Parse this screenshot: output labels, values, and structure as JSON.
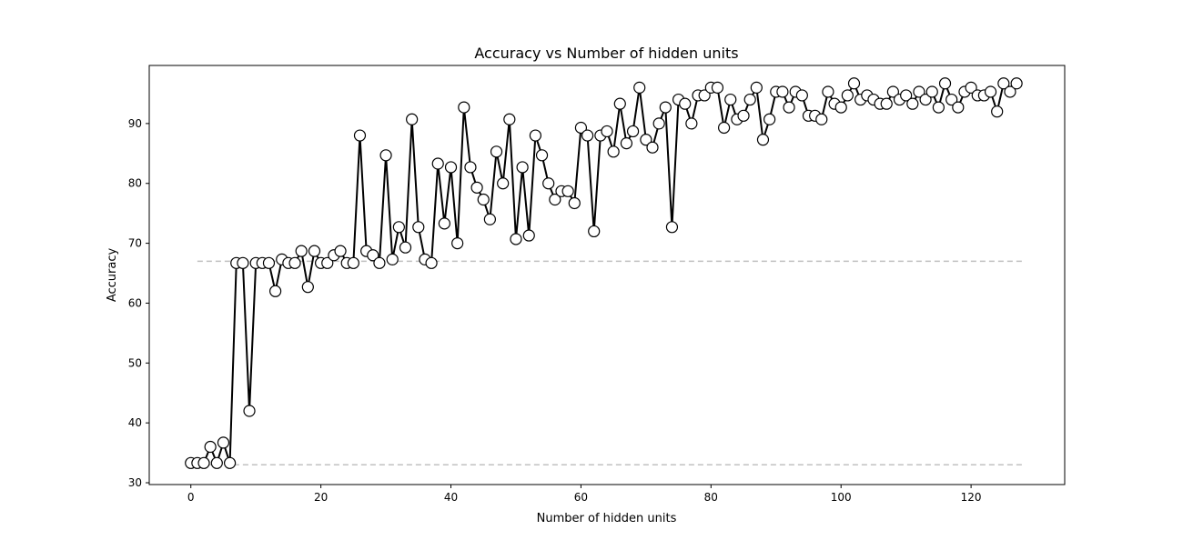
{
  "chart_data": {
    "type": "line",
    "title": "Accuracy vs Number of hidden units",
    "xlabel": "Number of hidden units",
    "ylabel": "Accuracy",
    "xlim": [
      -6.4,
      134.4
    ],
    "ylim": [
      29.7,
      99.7
    ],
    "x_ticks": [
      0,
      20,
      40,
      60,
      80,
      100,
      120
    ],
    "y_ticks": [
      30,
      40,
      50,
      60,
      70,
      80,
      90
    ],
    "grid": false,
    "legend": "none",
    "line_color": "#000000",
    "marker_face": "#ffffff",
    "reference_line_color": "#c0c0c0",
    "reference_lines": [
      {
        "y": 67.0,
        "x_range": [
          1,
          128
        ]
      },
      {
        "y": 33.0,
        "x_range": [
          1,
          128
        ]
      }
    ],
    "series": [
      {
        "x": [
          0,
          1,
          2,
          3,
          4,
          5,
          6,
          7,
          8,
          9,
          10,
          11,
          12,
          13,
          14,
          15,
          16,
          17,
          18,
          19,
          20,
          21,
          22,
          23,
          24,
          25,
          26,
          27,
          28,
          29,
          30,
          31,
          32,
          33,
          34,
          35,
          36,
          37,
          38,
          39,
          40,
          41,
          42,
          43,
          44,
          45,
          46,
          47,
          48,
          49,
          50,
          51,
          52,
          53,
          54,
          55,
          56,
          57,
          58,
          59,
          60,
          61,
          62,
          63,
          64,
          65,
          66,
          67,
          68,
          69,
          70,
          71,
          72,
          73,
          74,
          75,
          76,
          77,
          78,
          79,
          80,
          81,
          82,
          83,
          84,
          85,
          86,
          87,
          88,
          89,
          90,
          91,
          92,
          93,
          94,
          95,
          96,
          97,
          98,
          99,
          100,
          101,
          102,
          103,
          104,
          105,
          106,
          107,
          108,
          109,
          110,
          111,
          112,
          113,
          114,
          115,
          116,
          117,
          118,
          119,
          120,
          121,
          122,
          123,
          124,
          125,
          126,
          127
        ],
        "values": [
          33.3,
          33.3,
          33.3,
          36.0,
          33.3,
          36.7,
          33.3,
          66.7,
          66.7,
          42.0,
          66.7,
          66.7,
          66.7,
          62.0,
          67.3,
          66.7,
          66.7,
          68.7,
          62.7,
          68.7,
          66.7,
          66.7,
          68.0,
          68.7,
          66.7,
          66.7,
          88.0,
          68.7,
          68.0,
          66.7,
          84.7,
          67.3,
          72.7,
          69.3,
          90.7,
          72.7,
          67.3,
          66.7,
          83.3,
          73.3,
          82.7,
          70.0,
          92.7,
          82.7,
          79.3,
          77.3,
          74.0,
          85.3,
          80.0,
          90.7,
          70.7,
          82.7,
          71.3,
          88.0,
          84.7,
          80.0,
          77.3,
          78.7,
          78.7,
          76.7,
          89.3,
          88.0,
          72.0,
          88.0,
          88.7,
          85.3,
          93.3,
          86.7,
          88.7,
          96.0,
          87.3,
          86.0,
          90.0,
          92.7,
          72.7,
          94.0,
          93.3,
          90.0,
          94.7,
          94.7,
          96.0,
          96.0,
          89.3,
          94.0,
          90.7,
          91.3,
          94.0,
          96.0,
          87.3,
          90.7,
          95.3,
          95.3,
          92.7,
          95.3,
          94.7,
          91.3,
          91.3,
          90.7,
          95.3,
          93.3,
          92.7,
          94.7,
          96.7,
          94.0,
          94.7,
          94.0,
          93.3,
          93.3,
          95.3,
          94.0,
          94.7,
          93.3,
          95.3,
          94.0,
          95.3,
          92.7,
          96.7,
          94.0,
          92.7,
          95.3,
          96.0,
          94.7,
          94.7,
          95.3,
          92.0,
          96.7,
          95.3,
          96.7
        ]
      }
    ]
  }
}
